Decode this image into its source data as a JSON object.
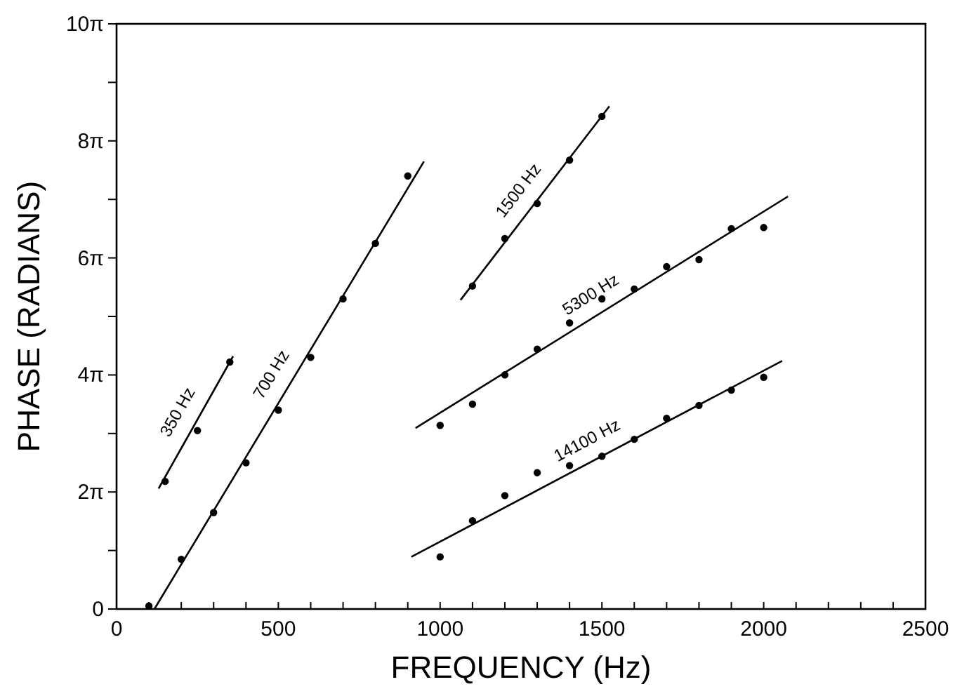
{
  "chart_data": {
    "type": "scatter",
    "xlabel": "FREQUENCY (Hz)",
    "ylabel": "PHASE (RADIANS)",
    "xlim": [
      0,
      2500
    ],
    "ylim": [
      0,
      31.416
    ],
    "xticks": [
      0,
      {
        "value": 100,
        "label": null
      },
      {
        "value": 200,
        "label": null
      },
      {
        "value": 300,
        "label": null
      },
      {
        "value": 400,
        "label": null
      },
      500,
      {
        "value": 600,
        "label": null
      },
      {
        "value": 700,
        "label": null
      },
      {
        "value": 800,
        "label": null
      },
      {
        "value": 900,
        "label": null
      },
      1000,
      {
        "value": 1100,
        "label": null
      },
      {
        "value": 1200,
        "label": null
      },
      {
        "value": 1300,
        "label": null
      },
      {
        "value": 1400,
        "label": null
      },
      1500,
      {
        "value": 1600,
        "label": null
      },
      {
        "value": 1700,
        "label": null
      },
      {
        "value": 1800,
        "label": null
      },
      {
        "value": 1900,
        "label": null
      },
      2000,
      {
        "value": 2100,
        "label": null
      },
      {
        "value": 2200,
        "label": null
      },
      {
        "value": 2300,
        "label": null
      },
      {
        "value": 2400,
        "label": null
      },
      2500
    ],
    "yticks": [
      0,
      {
        "value": 3.1416,
        "label": null
      },
      {
        "value": 6.2832,
        "label": "2π"
      },
      {
        "value": 9.4248,
        "label": null
      },
      {
        "value": 12.566,
        "label": "4π"
      },
      {
        "value": 15.708,
        "label": null
      },
      {
        "value": 18.85,
        "label": "6π"
      },
      {
        "value": 21.991,
        "label": null
      },
      {
        "value": 25.133,
        "label": "8π"
      },
      {
        "value": 28.274,
        "label": null
      },
      {
        "value": 31.416,
        "label": "10π"
      }
    ],
    "grid": false,
    "marker": "circle",
    "series": [
      {
        "color": "#000000",
        "x": [
          150,
          250,
          350
        ],
        "values": [
          6.85,
          9.58,
          13.26
        ]
      },
      {
        "type": "line",
        "name": "350 Hz",
        "color": "#000000",
        "marker": "none",
        "x": [
          130,
          360
        ],
        "values": [
          6.47,
          13.57
        ]
      },
      {
        "color": "#000000",
        "x": [
          100,
          200,
          300,
          400,
          500,
          600,
          700,
          800,
          900
        ],
        "values": [
          0.16,
          2.67,
          5.18,
          7.85,
          10.68,
          13.51,
          16.65,
          19.63,
          23.25
        ]
      },
      {
        "type": "line",
        "name": "700 Hz",
        "color": "#000000",
        "marker": "none",
        "x": [
          117,
          950
        ],
        "values": [
          0,
          24.03
        ]
      },
      {
        "color": "#000000",
        "x": [
          1100,
          1200,
          1300,
          1400,
          1500
        ],
        "values": [
          17.34,
          19.89,
          21.77,
          24.1,
          26.45
        ]
      },
      {
        "type": "line",
        "name": "1500 Hz",
        "color": "#000000",
        "marker": "none",
        "x": [
          1063,
          1523
        ],
        "values": [
          16.59,
          26.99
        ]
      },
      {
        "color": "#000000",
        "x": [
          1000,
          1100,
          1200,
          1300,
          1400,
          1500,
          1600,
          1700,
          1800,
          1900,
          2000
        ],
        "values": [
          9.86,
          11.0,
          12.57,
          13.95,
          15.36,
          16.65,
          17.18,
          18.38,
          18.76,
          20.42,
          20.48
        ]
      },
      {
        "type": "line",
        "name": "5300 Hz",
        "color": "#000000",
        "marker": "none",
        "x": [
          924,
          2075
        ],
        "values": [
          9.71,
          22.15
        ]
      },
      {
        "color": "#000000",
        "x": [
          1000,
          1100,
          1200,
          1300,
          1400,
          1500,
          1600,
          1700,
          1800,
          1900,
          2000
        ],
        "values": [
          2.8,
          4.74,
          6.09,
          7.32,
          7.7,
          8.2,
          9.11,
          10.24,
          10.93,
          11.75,
          12.44
        ]
      },
      {
        "type": "line",
        "name": "14100 Hz",
        "color": "#000000",
        "marker": "none",
        "x": [
          911,
          2057
        ],
        "values": [
          2.8,
          13.32
        ]
      }
    ]
  }
}
